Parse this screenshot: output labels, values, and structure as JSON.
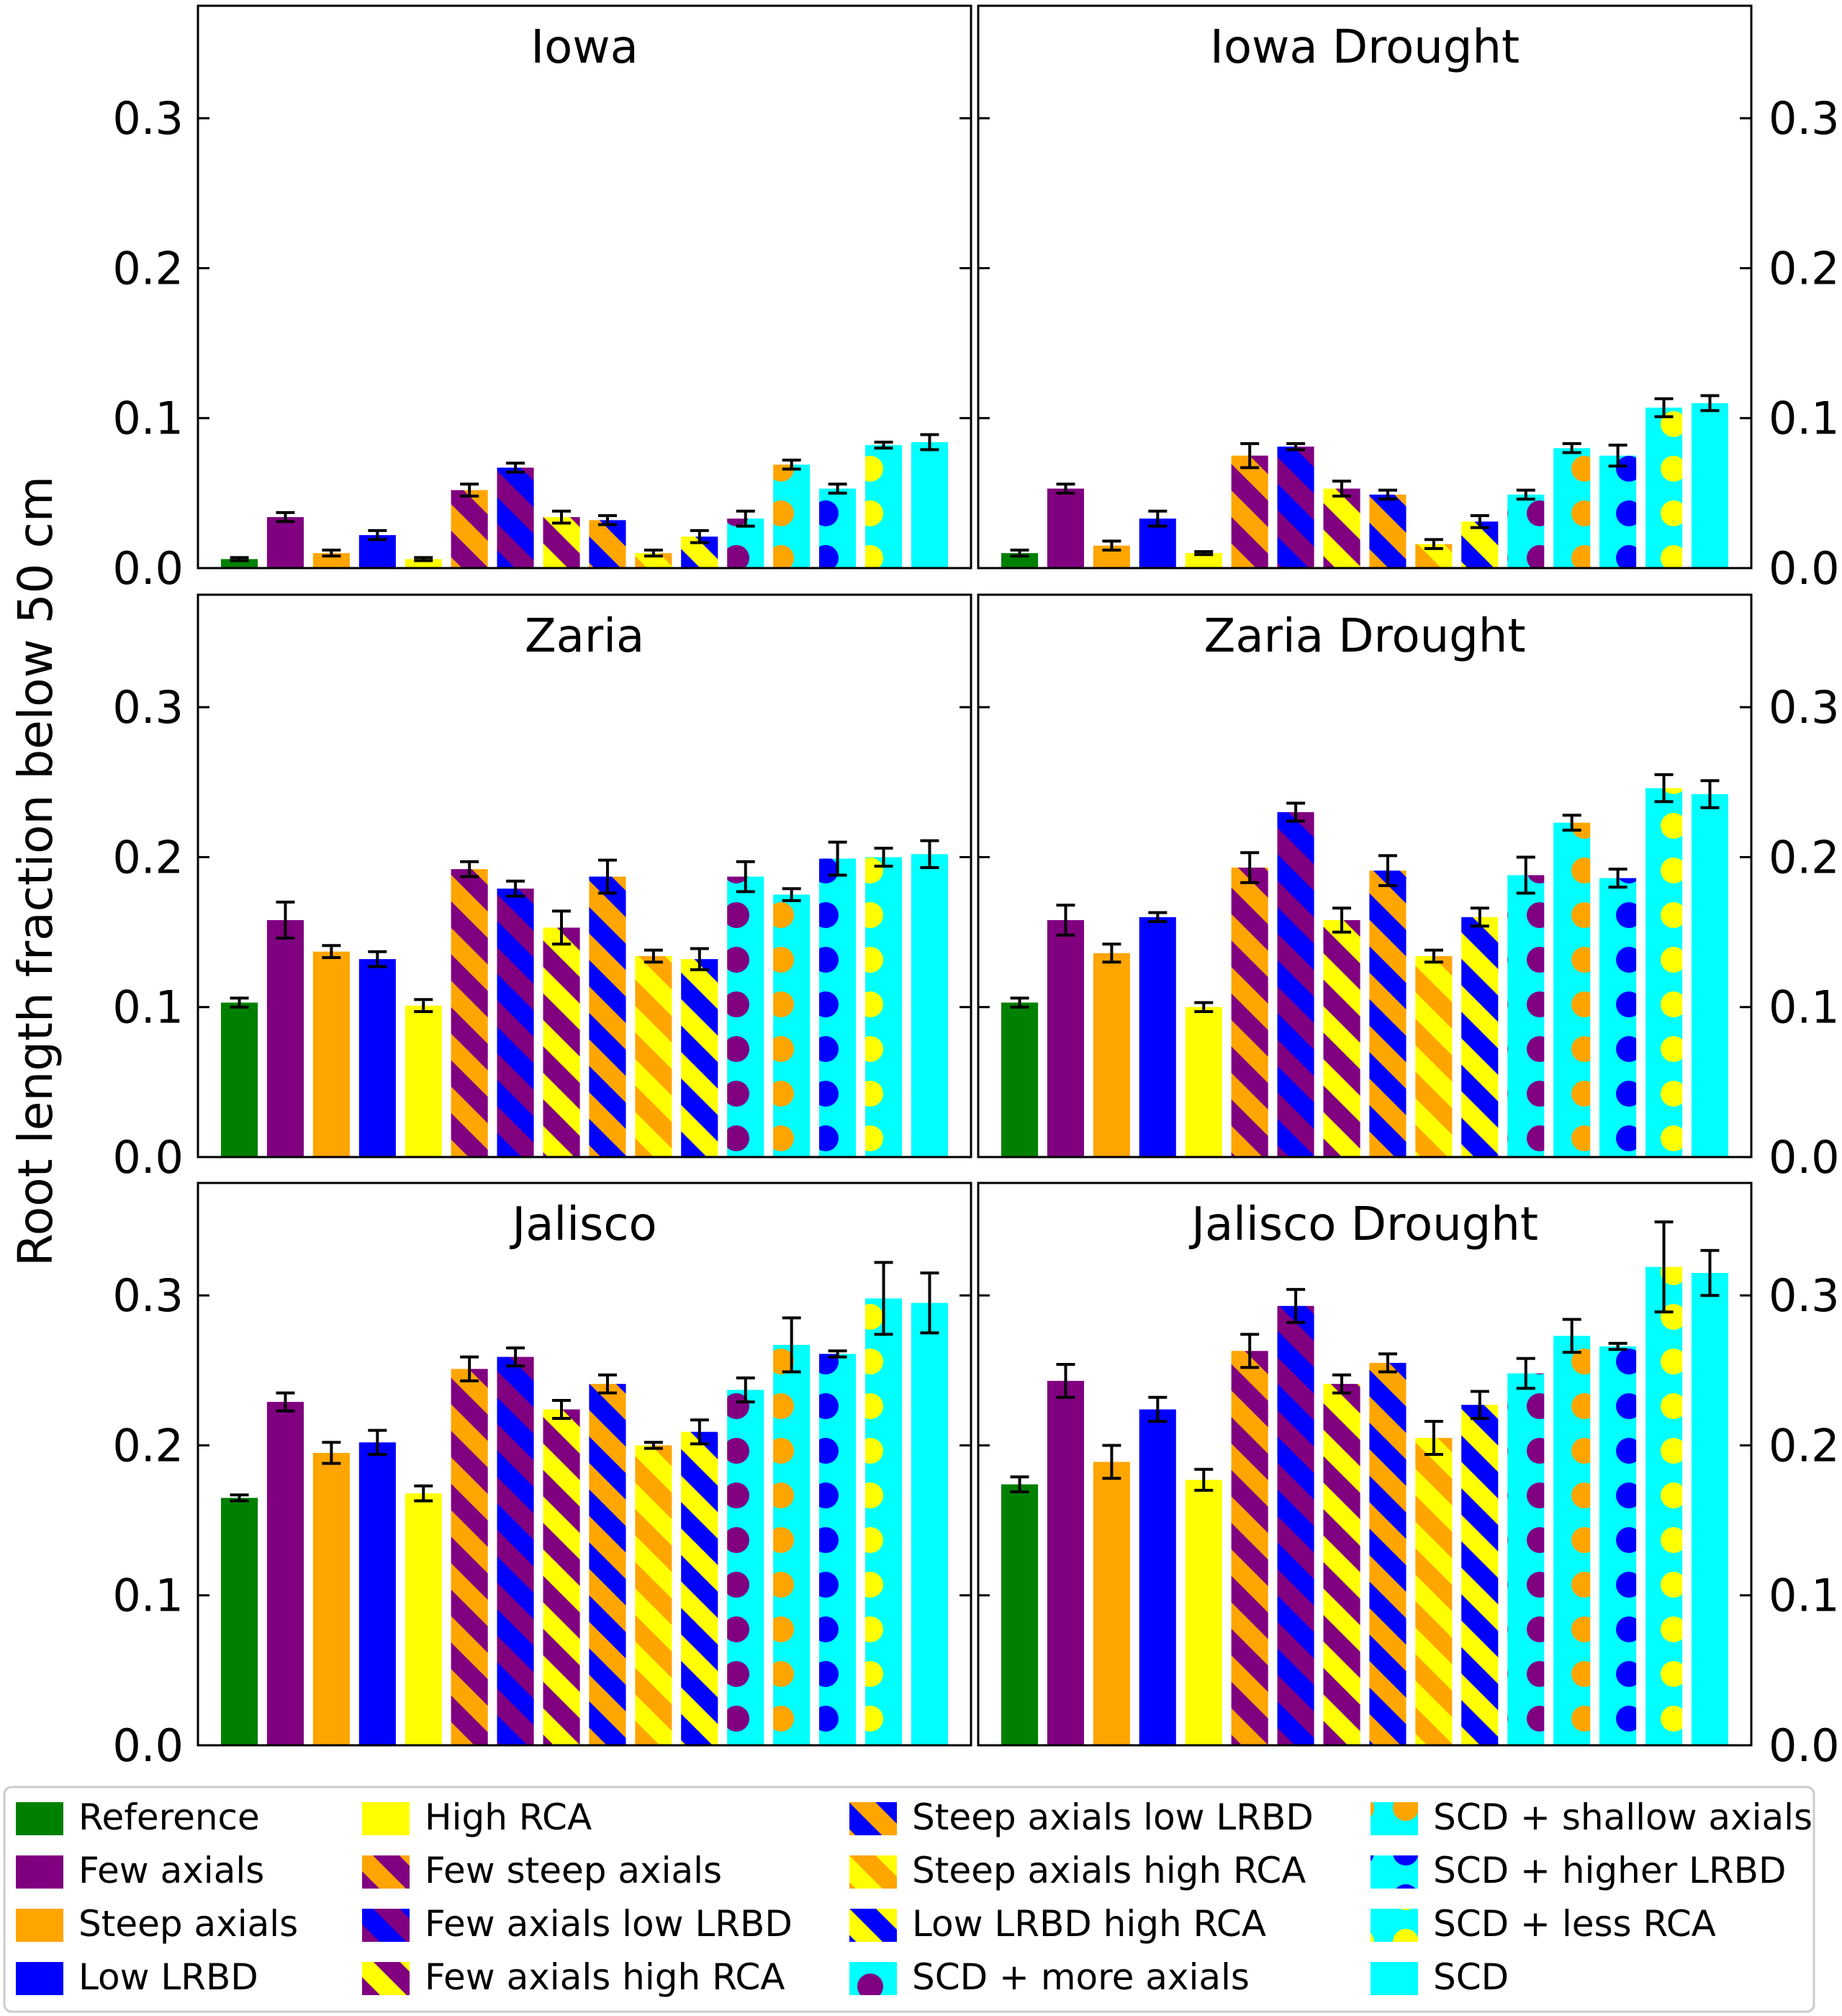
{
  "chart_data": {
    "type": "bar",
    "ylabel": "Root length fraction below 50 cm",
    "ylim": [
      0,
      0.375
    ],
    "yticks": [
      "0.0",
      "0.1",
      "0.2",
      "0.3"
    ],
    "grid": false,
    "legend_position": "bottom",
    "categories": [
      {
        "name": "Reference",
        "base": "#008000",
        "pattern": "solid",
        "accent": null
      },
      {
        "name": "Few axials",
        "base": "#800080",
        "pattern": "solid",
        "accent": null
      },
      {
        "name": "Steep axials",
        "base": "#FFA500",
        "pattern": "solid",
        "accent": null
      },
      {
        "name": "Low LRBD",
        "base": "#0000FF",
        "pattern": "solid",
        "accent": null
      },
      {
        "name": "High RCA",
        "base": "#FFFF00",
        "pattern": "solid",
        "accent": null
      },
      {
        "name": "Few steep axials",
        "base": "#800080",
        "pattern": "stripes",
        "accent": "#FFA500"
      },
      {
        "name": "Few axials low LRBD",
        "base": "#800080",
        "pattern": "stripes",
        "accent": "#0000FF"
      },
      {
        "name": "Few axials high RCA",
        "base": "#800080",
        "pattern": "stripes",
        "accent": "#FFFF00"
      },
      {
        "name": "Steep axials low LRBD",
        "base": "#FFA500",
        "pattern": "stripes",
        "accent": "#0000FF"
      },
      {
        "name": "Steep axials high RCA",
        "base": "#FFA500",
        "pattern": "stripes",
        "accent": "#FFFF00"
      },
      {
        "name": "Low LRBD high RCA",
        "base": "#0000FF",
        "pattern": "stripes",
        "accent": "#FFFF00"
      },
      {
        "name": "SCD + more axials",
        "base": "#00FFFF",
        "pattern": "dots",
        "accent": "#800080"
      },
      {
        "name": "SCD + shallow axials",
        "base": "#00FFFF",
        "pattern": "dots",
        "accent": "#FFA500"
      },
      {
        "name": "SCD + higher LRBD",
        "base": "#00FFFF",
        "pattern": "dots",
        "accent": "#0000FF"
      },
      {
        "name": "SCD + less RCA",
        "base": "#00FFFF",
        "pattern": "dots",
        "accent": "#FFFF00"
      },
      {
        "name": "SCD",
        "base": "#00FFFF",
        "pattern": "solid",
        "accent": null
      }
    ],
    "panels": [
      {
        "title": "Iowa",
        "values": [
          0.006,
          0.034,
          0.01,
          0.022,
          0.006,
          0.052,
          0.067,
          0.034,
          0.032,
          0.01,
          0.021,
          0.033,
          0.069,
          0.053,
          0.082,
          0.084
        ],
        "errors": [
          0.001,
          0.003,
          0.002,
          0.003,
          0.001,
          0.004,
          0.003,
          0.004,
          0.003,
          0.002,
          0.004,
          0.005,
          0.003,
          0.003,
          0.002,
          0.005
        ]
      },
      {
        "title": "Iowa Drought",
        "values": [
          0.01,
          0.053,
          0.015,
          0.033,
          0.01,
          0.075,
          0.081,
          0.053,
          0.049,
          0.016,
          0.031,
          0.049,
          0.08,
          0.075,
          0.107,
          0.11
        ],
        "errors": [
          0.002,
          0.003,
          0.003,
          0.005,
          0.001,
          0.008,
          0.002,
          0.005,
          0.003,
          0.003,
          0.004,
          0.003,
          0.003,
          0.007,
          0.006,
          0.005
        ]
      },
      {
        "title": "Zaria",
        "values": [
          0.103,
          0.158,
          0.137,
          0.132,
          0.101,
          0.192,
          0.179,
          0.153,
          0.187,
          0.134,
          0.132,
          0.187,
          0.175,
          0.199,
          0.2,
          0.202
        ],
        "errors": [
          0.003,
          0.012,
          0.004,
          0.005,
          0.004,
          0.005,
          0.005,
          0.011,
          0.011,
          0.004,
          0.007,
          0.01,
          0.004,
          0.011,
          0.006,
          0.009
        ]
      },
      {
        "title": "Zaria Drought",
        "values": [
          0.103,
          0.158,
          0.136,
          0.16,
          0.1,
          0.193,
          0.23,
          0.158,
          0.191,
          0.134,
          0.16,
          0.188,
          0.223,
          0.186,
          0.246,
          0.242
        ],
        "errors": [
          0.003,
          0.01,
          0.006,
          0.003,
          0.003,
          0.01,
          0.006,
          0.008,
          0.01,
          0.004,
          0.006,
          0.012,
          0.005,
          0.006,
          0.009,
          0.009
        ]
      },
      {
        "title": "Jalisco",
        "values": [
          0.165,
          0.229,
          0.195,
          0.202,
          0.168,
          0.251,
          0.259,
          0.224,
          0.241,
          0.2,
          0.209,
          0.237,
          0.267,
          0.261,
          0.298,
          0.295
        ],
        "errors": [
          0.002,
          0.006,
          0.007,
          0.008,
          0.005,
          0.008,
          0.006,
          0.006,
          0.006,
          0.002,
          0.008,
          0.008,
          0.018,
          0.002,
          0.024,
          0.02
        ]
      },
      {
        "title": "Jalisco Drought",
        "values": [
          0.174,
          0.243,
          0.189,
          0.224,
          0.177,
          0.263,
          0.293,
          0.241,
          0.255,
          0.205,
          0.227,
          0.248,
          0.273,
          0.266,
          0.319,
          0.315
        ],
        "errors": [
          0.005,
          0.011,
          0.011,
          0.008,
          0.007,
          0.011,
          0.011,
          0.006,
          0.006,
          0.011,
          0.009,
          0.01,
          0.011,
          0.002,
          0.03,
          0.015
        ]
      }
    ]
  }
}
